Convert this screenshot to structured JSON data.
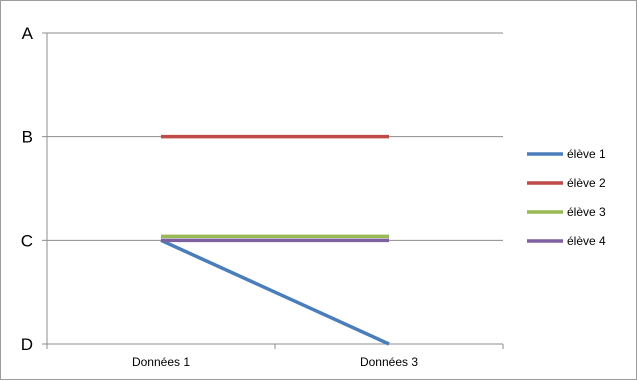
{
  "chart_data": {
    "type": "line",
    "title": "",
    "xlabel": "",
    "ylabel": "",
    "categories": [
      "Données 1",
      "Données 3"
    ],
    "y_categories": [
      "A",
      "B",
      "C",
      "D"
    ],
    "ylim": [
      "A",
      "D"
    ],
    "grid": true,
    "legend_position": "right",
    "series": [
      {
        "name": "élève 1",
        "values": [
          "C",
          "D"
        ],
        "color": "#4a7ebb"
      },
      {
        "name": "élève 2",
        "values": [
          "B",
          "B"
        ],
        "color": "#be4b48"
      },
      {
        "name": "élève 3",
        "values": [
          "C",
          "C"
        ],
        "color": "#98b954"
      },
      {
        "name": "élève 4",
        "values": [
          "C",
          "C"
        ],
        "color": "#7d60a0"
      }
    ]
  }
}
